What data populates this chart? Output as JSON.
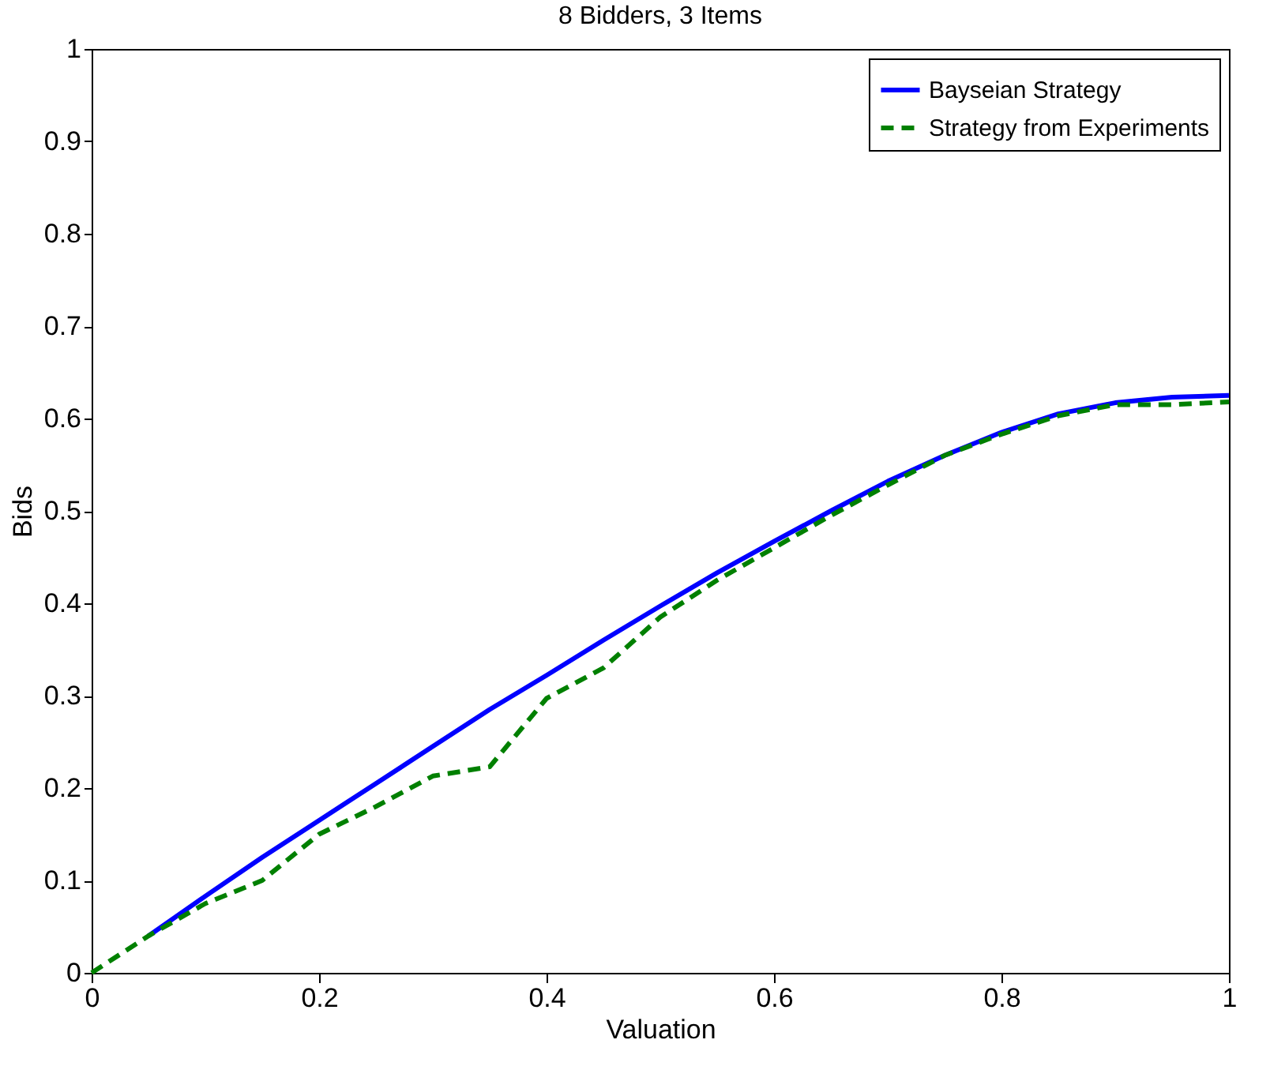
{
  "chart_data": {
    "type": "line",
    "title": "8 Bidders, 3 Items",
    "xlabel": "Valuation",
    "ylabel": "Bids",
    "xlim": [
      0,
      1
    ],
    "ylim": [
      0,
      1
    ],
    "xticks": [
      0,
      0.2,
      0.4,
      0.6,
      0.8,
      1
    ],
    "yticks": [
      0,
      0.1,
      0.2,
      0.3,
      0.4,
      0.5,
      0.6,
      0.7,
      0.8,
      0.9,
      1
    ],
    "grid": false,
    "legend": "top right",
    "marker": "none",
    "series": [
      {
        "name": "Bayseian Strategy",
        "color": "#0000ff",
        "line_style": "solid",
        "x": [
          0.05,
          0.1,
          0.15,
          0.2,
          0.25,
          0.3,
          0.35,
          0.4,
          0.45,
          0.5,
          0.55,
          0.6,
          0.65,
          0.7,
          0.75,
          0.8,
          0.85,
          0.9,
          0.95,
          1.0
        ],
        "values": [
          0.04,
          0.083,
          0.125,
          0.165,
          0.205,
          0.245,
          0.285,
          0.322,
          0.36,
          0.397,
          0.433,
          0.467,
          0.5,
          0.532,
          0.56,
          0.585,
          0.605,
          0.617,
          0.623,
          0.625
        ]
      },
      {
        "name": "Strategy from Experiments",
        "color": "#008000",
        "line_style": "dashed",
        "x": [
          0,
          0.05,
          0.1,
          0.15,
          0.2,
          0.25,
          0.3,
          0.35,
          0.4,
          0.45,
          0.5,
          0.55,
          0.6,
          0.65,
          0.7,
          0.75,
          0.8,
          0.85,
          0.9,
          0.95,
          1.0
        ],
        "values": [
          0,
          0.04,
          0.075,
          0.1,
          0.15,
          0.18,
          0.213,
          0.223,
          0.297,
          0.33,
          0.385,
          0.425,
          0.46,
          0.495,
          0.528,
          0.56,
          0.583,
          0.603,
          0.615,
          0.615,
          0.618
        ]
      }
    ]
  }
}
